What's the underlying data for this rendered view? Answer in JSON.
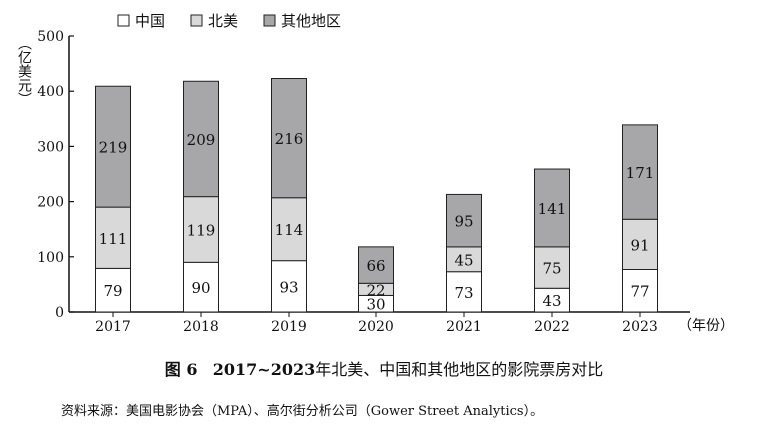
{
  "chart_data": {
    "type": "bar",
    "stacked": true,
    "categories": [
      "2017",
      "2018",
      "2019",
      "2020",
      "2021",
      "2022",
      "2023"
    ],
    "series": [
      {
        "name": "中国",
        "values": [
          79,
          90,
          93,
          30,
          73,
          43,
          77
        ],
        "color": "#ffffff"
      },
      {
        "name": "北美",
        "values": [
          111,
          119,
          114,
          22,
          45,
          75,
          91
        ],
        "color": "#d9d9d9"
      },
      {
        "name": "其他地区",
        "values": [
          219,
          209,
          216,
          66,
          95,
          141,
          171
        ],
        "color": "#a7a7a9"
      }
    ],
    "ylabel": "（亿美元）",
    "xlabel": "（年份）",
    "ylim": [
      0,
      500
    ],
    "yticks": [
      0,
      100,
      200,
      300,
      400,
      500
    ],
    "legend": "top",
    "grid": false
  },
  "caption": {
    "figure": "图 6",
    "year_range": "2017~2023",
    "title": "年北美、中国和其他地区的影院票房对比"
  },
  "source": "资料来源：美国电影协会（MPA）、高尔街分析公司（Gower Street Analytics）。"
}
